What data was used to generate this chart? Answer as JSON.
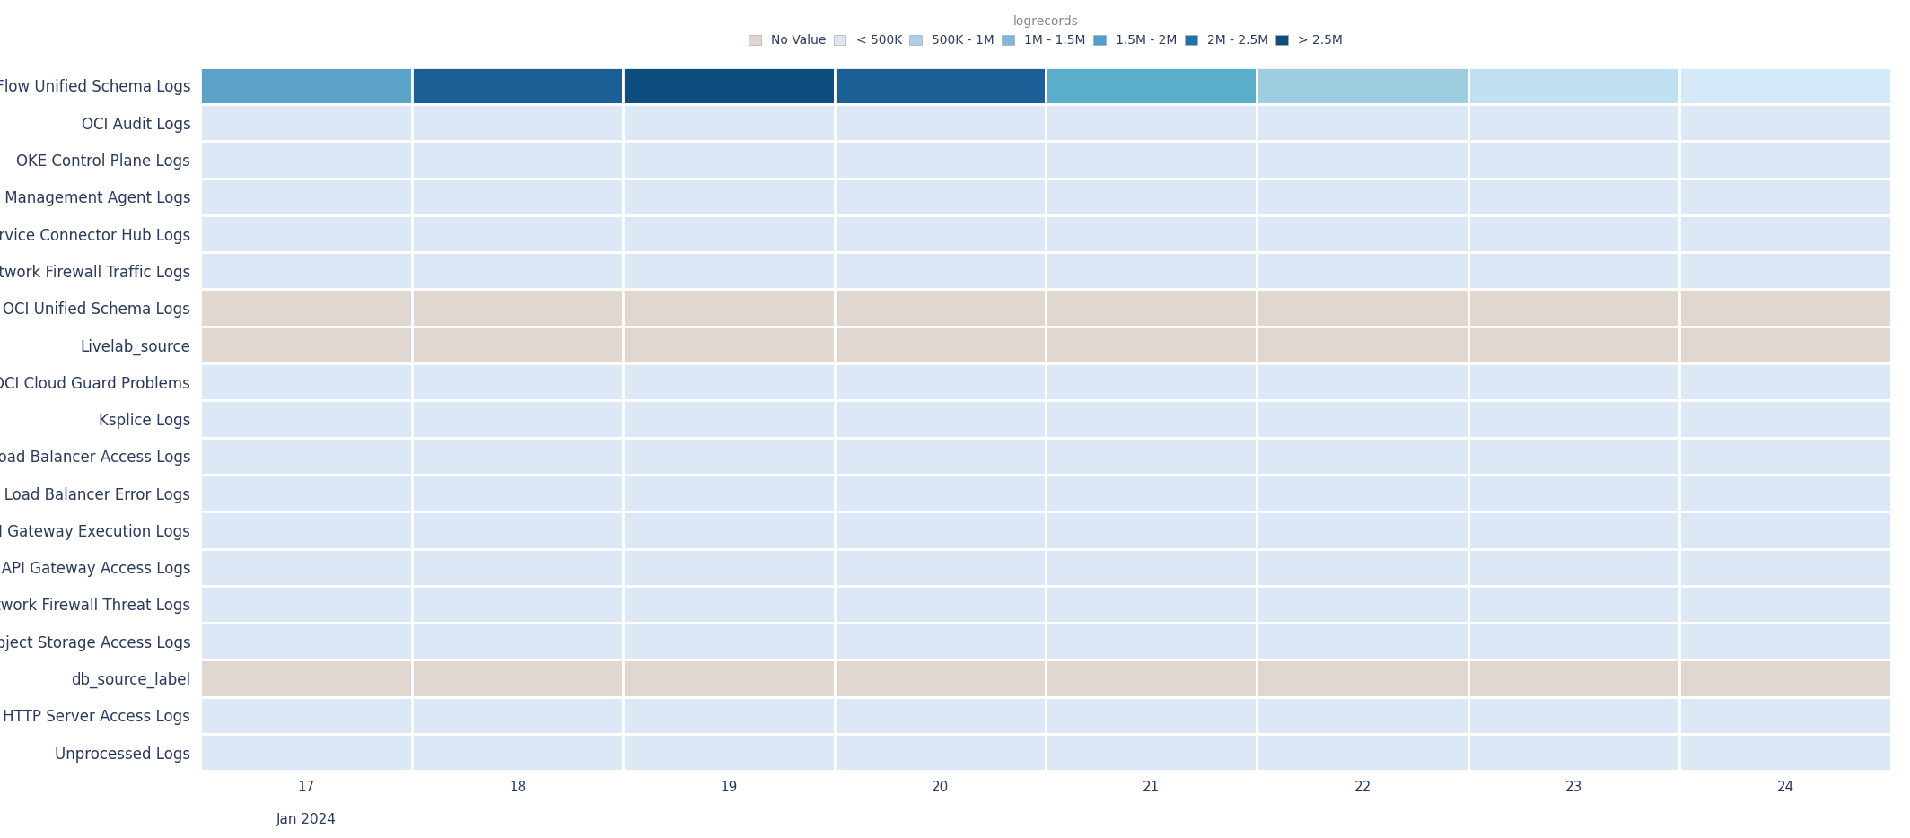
{
  "title": "logrecords",
  "y_labels": [
    "OCI VCN Flow Unified Schema Logs",
    "OCI Audit Logs",
    "OKE Control Plane Logs",
    "Oracle Management Agent Logs",
    "OCI Service Connector Hub Logs",
    "OCI Network Firewall Traffic Logs",
    "OCI Unified Schema Logs",
    "Livelab_source",
    "OCI Cloud Guard Problems",
    "Ksplice Logs",
    "OCI Load Balancer Access Logs",
    "OCI Load Balancer Error Logs",
    "OCI API Gateway Execution Logs",
    "OCI API Gateway Access Logs",
    "OCI Network Firewall Threat Logs",
    "OCI Object Storage Access Logs",
    "db_source_label",
    "Apache HTTP Server Access Logs",
    "Unprocessed Logs"
  ],
  "x_labels": [
    "17",
    "18",
    "19",
    "20",
    "21",
    "22",
    "23",
    "24"
  ],
  "x_sublabel": "Jan 2024",
  "legend_title": "logrecords",
  "legend_labels": [
    "No Value",
    "< 500K",
    "500K - 1M",
    "1M - 1.5M",
    "1.5M - 2M",
    "2M - 2.5M",
    "> 2.5M"
  ],
  "legend_colors": [
    "#e0d8d0",
    "#dce8f4",
    "#aecfe6",
    "#7db8dc",
    "#4fa0cc",
    "#1e72a8",
    "#0d4d80"
  ],
  "no_value_color": "#e0d8d0",
  "light_blue_color": "#dce8f5",
  "grid_color": "#ffffff",
  "fig_bg": "#ffffff",
  "plot_bg": "#ffffff",
  "label_area_bg": "#ffffff",
  "vcn_row_colors": [
    "#5ba3c9",
    "#1a5f96",
    "#0d4d80",
    "#1a5f96",
    "#5baeca",
    "#9ecde0",
    "#c0dff0",
    "#d5eaf8"
  ],
  "no_value_rows": [
    "OCI Unified Schema Logs",
    "Livelab_source",
    "db_source_label"
  ],
  "label_font_size": 12,
  "tick_font_size": 11,
  "legend_font_size": 10,
  "text_color": "#2a3a5c"
}
